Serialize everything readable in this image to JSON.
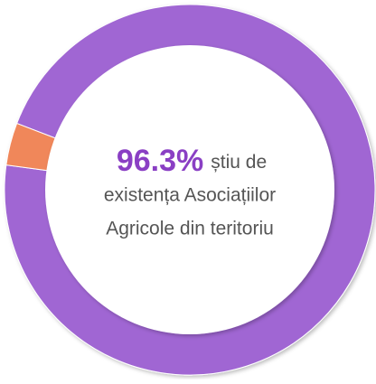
{
  "chart_data": {
    "type": "donut",
    "categories": [
      null,
      null
    ],
    "values": [
      96.3,
      3.7
    ],
    "value_labels": [
      "96.3%",
      null
    ],
    "colors": [
      "#a066d3",
      "#f0875a"
    ],
    "center_text": [
      "știu de",
      "existența Asociațiilor",
      "Agricole din teritoriu"
    ]
  }
}
